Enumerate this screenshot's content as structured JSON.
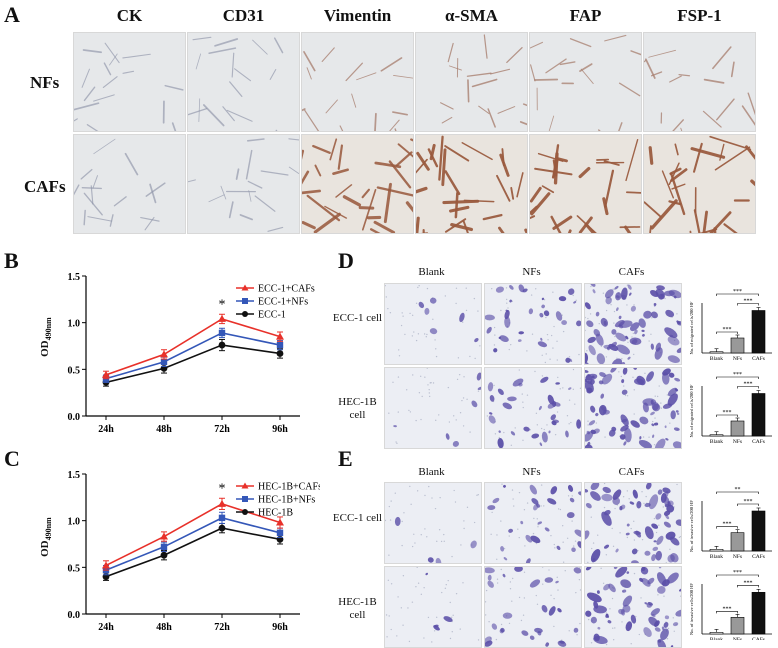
{
  "panelA": {
    "letter": "A",
    "columns": [
      "CK",
      "CD31",
      "Vimentin",
      "α-SMA",
      "FAP",
      "FSP-1"
    ],
    "rows": [
      "NFs",
      "CAFs"
    ]
  },
  "panelB": {
    "letter": "B",
    "ylabel_main": "OD",
    "ylabel_sub": "490nm",
    "significance": "*"
  },
  "panelC": {
    "letter": "C",
    "ylabel_main": "OD",
    "ylabel_sub": "490nm",
    "significance": "*"
  },
  "panelD": {
    "letter": "D",
    "columns": [
      "Blank",
      "NFs",
      "CAFs"
    ],
    "rows": [
      "ECC-1 cell",
      "HEC-1B cell"
    ],
    "ylabel": "No. of migrated cells/200 HF"
  },
  "panelE": {
    "letter": "E",
    "columns": [
      "Blank",
      "NFs",
      "CAFs"
    ],
    "rows": [
      "ECC-1 cell",
      "HEC-1B cell"
    ],
    "ylabel": "No. of invasive cells/200 HF"
  },
  "colors": {
    "red": "#e8312a",
    "blue": "#3457b8",
    "black": "#111111",
    "stain_purple": "#5b4fa8",
    "stain_brown": "#a4674a"
  },
  "chart_data": [
    {
      "id": "B",
      "type": "line",
      "categories": [
        "24h",
        "48h",
        "72h",
        "96h"
      ],
      "ylim": [
        0,
        1.5
      ],
      "yticks": [
        0,
        0.5,
        1.0,
        1.5
      ],
      "series": [
        {
          "name": "ECC-1+CAFs",
          "color": "#e8312a",
          "marker": "triangle",
          "values": [
            0.44,
            0.66,
            1.04,
            0.85
          ],
          "errors": [
            0.04,
            0.05,
            0.05,
            0.05
          ]
        },
        {
          "name": "ECC-1+NFs",
          "color": "#3457b8",
          "marker": "square",
          "values": [
            0.4,
            0.58,
            0.89,
            0.76
          ],
          "errors": [
            0.04,
            0.05,
            0.05,
            0.05
          ]
        },
        {
          "name": "ECC-1",
          "color": "#111111",
          "marker": "circle",
          "values": [
            0.36,
            0.51,
            0.76,
            0.67
          ],
          "errors": [
            0.04,
            0.05,
            0.06,
            0.05
          ]
        }
      ]
    },
    {
      "id": "C",
      "type": "line",
      "categories": [
        "24h",
        "48h",
        "72h",
        "96h"
      ],
      "ylim": [
        0,
        1.5
      ],
      "yticks": [
        0,
        0.5,
        1.0,
        1.5
      ],
      "series": [
        {
          "name": "HEC-1B+CAFs",
          "color": "#e8312a",
          "marker": "triangle",
          "values": [
            0.52,
            0.83,
            1.18,
            0.98
          ],
          "errors": [
            0.05,
            0.05,
            0.06,
            0.06
          ]
        },
        {
          "name": "HEC-1B+NFs",
          "color": "#3457b8",
          "marker": "square",
          "values": [
            0.47,
            0.72,
            1.03,
            0.87
          ],
          "errors": [
            0.05,
            0.05,
            0.06,
            0.05
          ]
        },
        {
          "name": "HEC-1B",
          "color": "#111111",
          "marker": "circle",
          "values": [
            0.4,
            0.63,
            0.92,
            0.8
          ],
          "errors": [
            0.04,
            0.05,
            0.05,
            0.05
          ]
        }
      ]
    },
    {
      "id": "D1",
      "type": "bar",
      "categories": [
        "Blank",
        "NFs",
        "CAFs"
      ],
      "values": [
        1,
        12,
        34
      ],
      "ymax": 40,
      "colors": [
        "#ffffff",
        "#999999",
        "#111111"
      ],
      "sig": [
        "***",
        "***",
        "***"
      ]
    },
    {
      "id": "D2",
      "type": "bar",
      "categories": [
        "Blank",
        "NFs",
        "CAFs"
      ],
      "values": [
        1,
        12,
        34
      ],
      "ymax": 40,
      "colors": [
        "#ffffff",
        "#999999",
        "#111111"
      ],
      "sig": [
        "***",
        "***",
        "***"
      ]
    },
    {
      "id": "E1",
      "type": "bar",
      "categories": [
        "Blank",
        "NFs",
        "CAFs"
      ],
      "values": [
        1,
        11,
        24
      ],
      "ymax": 30,
      "colors": [
        "#ffffff",
        "#999999",
        "#111111"
      ],
      "sig": [
        "***",
        "***",
        "**"
      ]
    },
    {
      "id": "E2",
      "type": "bar",
      "categories": [
        "Blank",
        "NFs",
        "CAFs"
      ],
      "values": [
        1,
        10,
        25
      ],
      "ymax": 30,
      "colors": [
        "#ffffff",
        "#999999",
        "#111111"
      ],
      "sig": [
        "***",
        "***",
        "***"
      ]
    }
  ]
}
